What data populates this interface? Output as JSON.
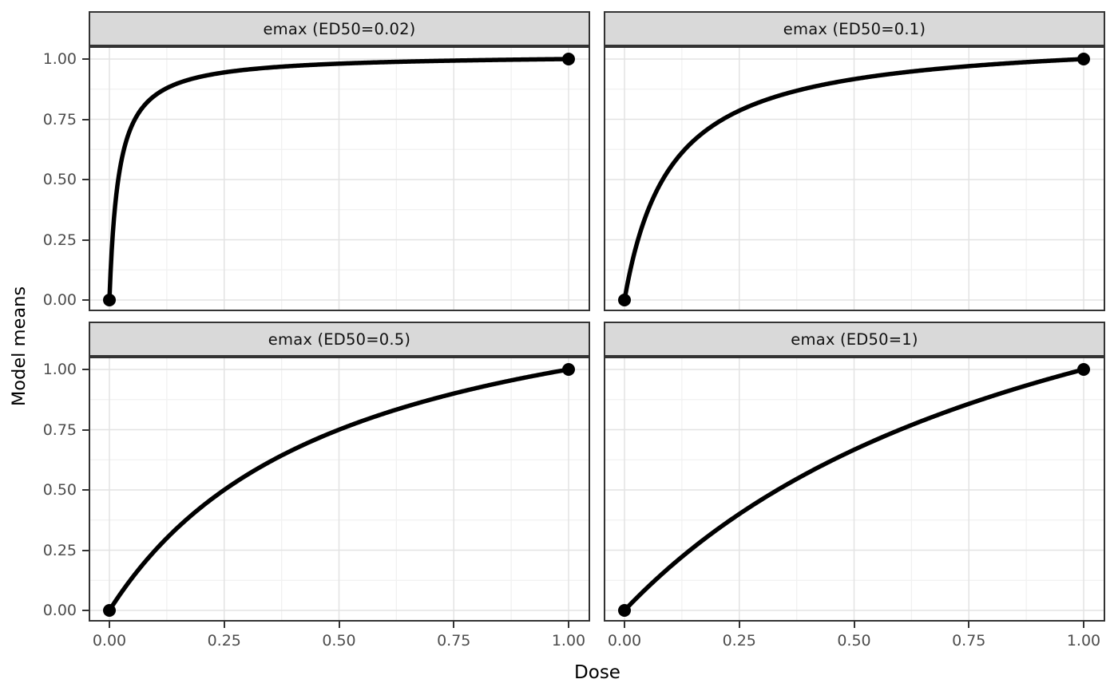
{
  "chart_data": {
    "type": "line",
    "title": "",
    "xlabel": "Dose",
    "ylabel": "Model means",
    "xlim": [
      0,
      1
    ],
    "ylim": [
      0,
      1
    ],
    "x_ticks": [
      "0.00",
      "0.25",
      "0.50",
      "0.75",
      "1.00"
    ],
    "y_ticks": [
      "0.00",
      "0.25",
      "0.50",
      "0.75",
      "1.00"
    ],
    "x_tick_values": [
      0,
      0.25,
      0.5,
      0.75,
      1
    ],
    "y_tick_values": [
      0,
      0.25,
      0.5,
      0.75,
      1
    ],
    "minor_breaks": [
      0.125,
      0.375,
      0.625,
      0.875
    ],
    "grid": "major+minor",
    "legend": "none",
    "facet_layout": "2x2",
    "curve_formula": "y = x*(1+ED50)/(x+ED50)",
    "line_width": 5.5,
    "point_radius": 8,
    "facets": [
      {
        "title": "emax (ED50=0.02)",
        "model": "emax",
        "ed50": 0.02,
        "points": [
          {
            "x": 0,
            "y": 0
          },
          {
            "x": 1,
            "y": 1
          }
        ],
        "curve_x": [
          0,
          0.125,
          0.25,
          0.375,
          0.5,
          0.625,
          0.75,
          0.875,
          1
        ],
        "curve_y": [
          0,
          0.879,
          0.944,
          0.968,
          0.981,
          0.988,
          0.994,
          0.997,
          1
        ]
      },
      {
        "title": "emax (ED50=0.1)",
        "model": "emax",
        "ed50": 0.1,
        "points": [
          {
            "x": 0,
            "y": 0
          },
          {
            "x": 1,
            "y": 1
          }
        ],
        "curve_x": [
          0,
          0.125,
          0.25,
          0.375,
          0.5,
          0.625,
          0.75,
          0.875,
          1
        ],
        "curve_y": [
          0,
          0.611,
          0.786,
          0.868,
          0.917,
          0.948,
          0.971,
          0.987,
          1
        ]
      },
      {
        "title": "emax (ED50=0.5)",
        "model": "emax",
        "ed50": 0.5,
        "points": [
          {
            "x": 0,
            "y": 0
          },
          {
            "x": 1,
            "y": 1
          }
        ],
        "curve_x": [
          0,
          0.125,
          0.25,
          0.375,
          0.5,
          0.625,
          0.75,
          0.875,
          1
        ],
        "curve_y": [
          0,
          0.3,
          0.5,
          0.643,
          0.75,
          0.833,
          0.9,
          0.955,
          1
        ]
      },
      {
        "title": "emax (ED50=1)",
        "model": "emax",
        "ed50": 1,
        "points": [
          {
            "x": 0,
            "y": 0
          },
          {
            "x": 1,
            "y": 1
          }
        ],
        "curve_x": [
          0,
          0.125,
          0.25,
          0.375,
          0.5,
          0.625,
          0.75,
          0.875,
          1
        ],
        "curve_y": [
          0,
          0.222,
          0.4,
          0.545,
          0.667,
          0.769,
          0.857,
          0.933,
          1
        ]
      }
    ]
  },
  "styles": {
    "background": "#ffffff",
    "strip_bg": "#d9d9d9",
    "strip_border": "#333333",
    "panel_border": "#333333",
    "grid_major": "#e3e3e3",
    "grid_minor": "#f1f1f1",
    "line": "#000000",
    "point": "#000000",
    "tick": "#333333",
    "tick_label": "#4d4d4d",
    "axis_title": "#000000"
  }
}
